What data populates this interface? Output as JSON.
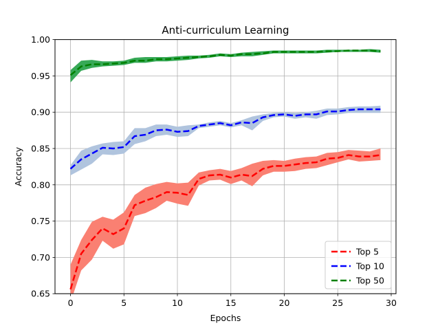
{
  "chart_data": {
    "type": "line",
    "title": "Anti-curriculum Learning",
    "xlabel": "Epochs",
    "ylabel": "Accuracy",
    "xlim": [
      -1.45,
      30.45
    ],
    "ylim": [
      0.65,
      1.0
    ],
    "xticks": [
      0,
      5,
      10,
      15,
      20,
      25,
      30
    ],
    "yticks": [
      0.65,
      0.7,
      0.75,
      0.8,
      0.85,
      0.9,
      0.95,
      1.0
    ],
    "xtick_labels": [
      "0",
      "5",
      "10",
      "15",
      "20",
      "25",
      "30"
    ],
    "ytick_labels": [
      "0.65",
      "0.70",
      "0.75",
      "0.80",
      "0.85",
      "0.90",
      "0.95",
      "1.00"
    ],
    "grid": true,
    "legend_position": "bottom-right",
    "x": [
      0,
      1,
      2,
      3,
      4,
      5,
      6,
      7,
      8,
      9,
      10,
      11,
      12,
      13,
      14,
      15,
      16,
      17,
      18,
      19,
      20,
      21,
      22,
      23,
      24,
      25,
      26,
      27,
      28,
      29
    ],
    "series": [
      {
        "name": "Top 5",
        "color": "#ff0000",
        "band_color": "#fa8072",
        "values": [
          0.656,
          0.705,
          0.724,
          0.74,
          0.732,
          0.74,
          0.772,
          0.778,
          0.783,
          0.79,
          0.789,
          0.786,
          0.808,
          0.813,
          0.814,
          0.81,
          0.814,
          0.812,
          0.822,
          0.826,
          0.826,
          0.828,
          0.83,
          0.831,
          0.836,
          0.837,
          0.841,
          0.839,
          0.839,
          0.841
        ],
        "lower": [
          0.638,
          0.682,
          0.697,
          0.723,
          0.712,
          0.718,
          0.757,
          0.761,
          0.768,
          0.778,
          0.774,
          0.771,
          0.799,
          0.806,
          0.807,
          0.801,
          0.806,
          0.798,
          0.813,
          0.818,
          0.818,
          0.819,
          0.822,
          0.823,
          0.827,
          0.831,
          0.835,
          0.832,
          0.833,
          0.834
        ],
        "upper": [
          0.69,
          0.724,
          0.749,
          0.756,
          0.752,
          0.762,
          0.786,
          0.796,
          0.801,
          0.804,
          0.802,
          0.803,
          0.817,
          0.82,
          0.822,
          0.819,
          0.823,
          0.829,
          0.833,
          0.834,
          0.833,
          0.836,
          0.838,
          0.839,
          0.844,
          0.845,
          0.848,
          0.847,
          0.846,
          0.85
        ]
      },
      {
        "name": "Top 10",
        "color": "#0000ff",
        "band_color": "#b0c4de",
        "values": [
          0.822,
          0.835,
          0.843,
          0.851,
          0.85,
          0.852,
          0.867,
          0.869,
          0.875,
          0.876,
          0.873,
          0.874,
          0.881,
          0.883,
          0.885,
          0.882,
          0.886,
          0.885,
          0.893,
          0.896,
          0.897,
          0.895,
          0.897,
          0.897,
          0.901,
          0.901,
          0.903,
          0.904,
          0.904,
          0.904
        ],
        "lower": [
          0.813,
          0.821,
          0.829,
          0.842,
          0.841,
          0.843,
          0.856,
          0.86,
          0.867,
          0.869,
          0.866,
          0.867,
          0.878,
          0.88,
          0.882,
          0.879,
          0.882,
          0.875,
          0.888,
          0.893,
          0.894,
          0.891,
          0.893,
          0.891,
          0.896,
          0.897,
          0.899,
          0.899,
          0.899,
          0.899
        ],
        "upper": [
          0.827,
          0.847,
          0.853,
          0.857,
          0.859,
          0.86,
          0.878,
          0.878,
          0.883,
          0.883,
          0.88,
          0.882,
          0.883,
          0.886,
          0.888,
          0.885,
          0.889,
          0.894,
          0.897,
          0.899,
          0.9,
          0.899,
          0.9,
          0.902,
          0.905,
          0.905,
          0.907,
          0.908,
          0.908,
          0.909
        ]
      },
      {
        "name": "Top 50",
        "color": "#008000",
        "band_color": "#2ca44e",
        "values": [
          0.951,
          0.963,
          0.966,
          0.966,
          0.967,
          0.968,
          0.971,
          0.971,
          0.973,
          0.973,
          0.974,
          0.975,
          0.976,
          0.977,
          0.979,
          0.978,
          0.98,
          0.98,
          0.981,
          0.983,
          0.983,
          0.983,
          0.983,
          0.983,
          0.984,
          0.984,
          0.985,
          0.985,
          0.985,
          0.984
        ],
        "lower": [
          0.941,
          0.957,
          0.961,
          0.963,
          0.964,
          0.965,
          0.968,
          0.968,
          0.97,
          0.97,
          0.971,
          0.972,
          0.974,
          0.975,
          0.977,
          0.976,
          0.977,
          0.977,
          0.979,
          0.981,
          0.981,
          0.981,
          0.981,
          0.981,
          0.982,
          0.983,
          0.983,
          0.983,
          0.983,
          0.982
        ],
        "upper": [
          0.958,
          0.971,
          0.972,
          0.97,
          0.97,
          0.971,
          0.975,
          0.976,
          0.976,
          0.976,
          0.977,
          0.978,
          0.978,
          0.979,
          0.981,
          0.98,
          0.982,
          0.983,
          0.984,
          0.985,
          0.985,
          0.985,
          0.985,
          0.985,
          0.986,
          0.986,
          0.986,
          0.986,
          0.987,
          0.986
        ]
      }
    ]
  }
}
